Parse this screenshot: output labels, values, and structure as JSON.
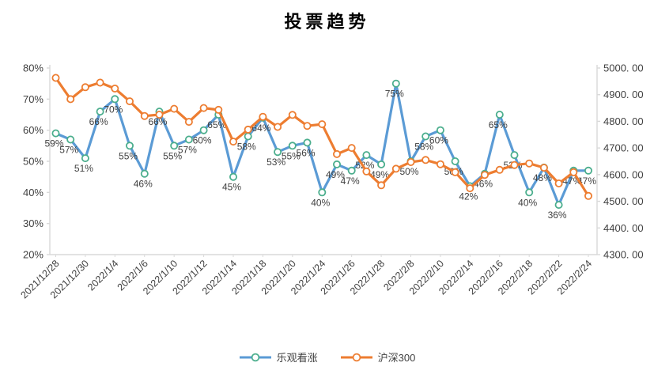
{
  "chart_data": {
    "type": "line",
    "title": "投票趋势",
    "grid": false,
    "legend_position": "bottom",
    "n_points": 37,
    "x_tick_labels": [
      "2021/12/28",
      "2021/12/30",
      "2022/1/4",
      "2022/1/6",
      "2022/1/10",
      "2022/1/12",
      "2022/1/14",
      "2022/1/18",
      "2022/1/20",
      "2022/1/24",
      "2022/1/26",
      "2022/1/28",
      "2022/2/8",
      "2022/2/10",
      "2022/2/14",
      "2022/2/16",
      "2022/2/18",
      "2022/2/22",
      "2022/2/24"
    ],
    "x_tick_point_indices": [
      0,
      2,
      4,
      6,
      8,
      10,
      12,
      14,
      16,
      18,
      20,
      22,
      24,
      26,
      28,
      30,
      32,
      34,
      36
    ],
    "left_axis": {
      "min": 20,
      "max": 80,
      "step": 10,
      "tick_labels": [
        "80%",
        "70%",
        "60%",
        "50%",
        "40%",
        "30%",
        "20%"
      ]
    },
    "right_axis": {
      "min": 4300,
      "max": 5000,
      "step": 100,
      "tick_labels": [
        "5000. 00",
        "4900. 00",
        "4800. 00",
        "4700. 00",
        "4600. 00",
        "4500. 00",
        "4400. 00",
        "4300. 00"
      ]
    },
    "series": [
      {
        "name": "乐观看涨",
        "axis": "left",
        "color": "#5B9BD5",
        "marker_ring": "#4BAE8D",
        "values": [
          59,
          57,
          51,
          66,
          70,
          55,
          46,
          66,
          55,
          57,
          60,
          65,
          45,
          58,
          64,
          53,
          55,
          56,
          40,
          49,
          47,
          52,
          49,
          75,
          50,
          58,
          60,
          50,
          42,
          46,
          65,
          52,
          40,
          48,
          36,
          47,
          47
        ],
        "point_labels": [
          "59%",
          "57%",
          "51%",
          "66%",
          "70%",
          "55%",
          "46%",
          "66%",
          "55%",
          "57%",
          "60%",
          "65%",
          "45%",
          "58%",
          "64%",
          "53%",
          "55%",
          "56%",
          "40%",
          "49%",
          "47%",
          "52%",
          "49%",
          "75%",
          "50%",
          "58%",
          "60%",
          "50%",
          "42%",
          "46%",
          "65%",
          "52%",
          "40%",
          "48%",
          "36%",
          "47%",
          "47%"
        ]
      },
      {
        "name": "沪深300",
        "axis": "right",
        "color": "#ED7D31",
        "marker_ring": "#ED7D31",
        "values": [
          4963,
          4883,
          4928,
          4945,
          4923,
          4875,
          4820,
          4825,
          4847,
          4798,
          4850,
          4843,
          4724,
          4769,
          4817,
          4779,
          4824,
          4783,
          4789,
          4677,
          4700,
          4612,
          4560,
          4622,
          4647,
          4655,
          4639,
          4609,
          4549,
          4599,
          4618,
          4636,
          4642,
          4626,
          4567,
          4609,
          4520
        ],
        "point_labels": []
      }
    ],
    "colors": {
      "axis_line": "#D9D9D9",
      "tick_text": "#404040",
      "data_label_text": "#404040",
      "background": "#FFFFFF"
    }
  }
}
